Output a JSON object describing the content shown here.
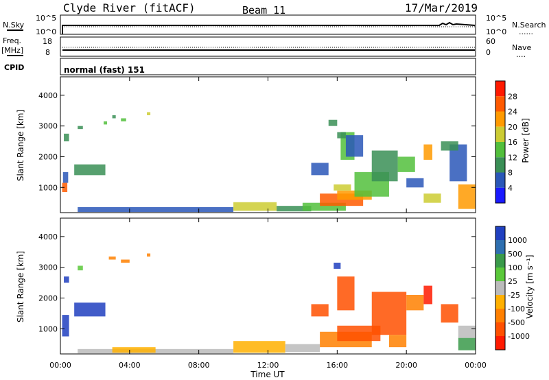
{
  "header": {
    "station": "Clyde River (fitACF)",
    "beam": "Beam 11",
    "date": "17/Mar/2019"
  },
  "sky_panel": {
    "left_label": "N.Sky",
    "left_ticks": [
      "10^5",
      "10^0"
    ],
    "right_ticks": [
      "10^5",
      "10^0"
    ],
    "right_label": "N.Search",
    "right_legend": "......"
  },
  "freq_panel": {
    "left_label_1": "Freq.",
    "left_label_2": "[MHz]",
    "left_ticks": [
      "18",
      "8"
    ],
    "right_ticks": [
      "60",
      "0"
    ],
    "right_label": "Nave",
    "right_legend": "...."
  },
  "cpid": {
    "label": "CPID",
    "value": "normal (fast) 151"
  },
  "x_axis": {
    "ticks": [
      "00:00",
      "04:00",
      "08:00",
      "12:00",
      "16:00",
      "20:00",
      "00:00"
    ],
    "label": "Time UT"
  },
  "chart_data": [
    {
      "type": "heatmap",
      "name": "power",
      "x_unit": "hours UT",
      "xlim": [
        0,
        24
      ],
      "y_label": "Slant Range [km]",
      "ylim": [
        180,
        4600
      ],
      "y_ticks": [
        "1000",
        "2000",
        "3000",
        "4000"
      ],
      "colorbar_label": "Power [dB]",
      "colorbar_ticks": [
        "4",
        "8",
        "12",
        "16",
        "20",
        "24",
        "28"
      ],
      "colorbar_colors": [
        "#1a1aff",
        "#2a57b8",
        "#3a8f56",
        "#52bf3c",
        "#cccc33",
        "#ff9a00",
        "#ff5a00",
        "#ff1a00"
      ],
      "cells": [
        {
          "t": [
            0.1,
            0.4
          ],
          "r": [
            850,
            1150
          ],
          "c": 6
        },
        {
          "t": [
            0.15,
            0.45
          ],
          "r": [
            1150,
            1500
          ],
          "c": 1
        },
        {
          "t": [
            0.2,
            0.5
          ],
          "r": [
            2500,
            2750
          ],
          "c": 2
        },
        {
          "t": [
            0.8,
            2.6
          ],
          "r": [
            1400,
            1750
          ],
          "c": 2
        },
        {
          "t": [
            1.0,
            1.3
          ],
          "r": [
            2900,
            3000
          ],
          "c": 2
        },
        {
          "t": [
            2.5,
            2.7
          ],
          "r": [
            3050,
            3150
          ],
          "c": 3
        },
        {
          "t": [
            3.0,
            3.2
          ],
          "r": [
            3250,
            3350
          ],
          "c": 2
        },
        {
          "t": [
            3.5,
            3.8
          ],
          "r": [
            3150,
            3250
          ],
          "c": 3
        },
        {
          "t": [
            5.0,
            5.2
          ],
          "r": [
            3350,
            3450
          ],
          "c": 4
        },
        {
          "t": [
            1.0,
            10.0
          ],
          "r": [
            200,
            360
          ],
          "c": 1
        },
        {
          "t": [
            10.0,
            12.5
          ],
          "r": [
            240,
            520
          ],
          "c": 4
        },
        {
          "t": [
            12.5,
            14.5
          ],
          "r": [
            220,
            400
          ],
          "c": 2
        },
        {
          "t": [
            14.0,
            16.5
          ],
          "r": [
            240,
            500
          ],
          "c": 3
        },
        {
          "t": [
            15.0,
            17.5
          ],
          "r": [
            400,
            800
          ],
          "c": 6
        },
        {
          "t": [
            16.0,
            18.0
          ],
          "r": [
            600,
            900
          ],
          "c": 5
        },
        {
          "t": [
            15.8,
            16.8
          ],
          "r": [
            900,
            1100
          ],
          "c": 4
        },
        {
          "t": [
            17.0,
            19.0
          ],
          "r": [
            700,
            1500
          ],
          "c": 3
        },
        {
          "t": [
            16.2,
            17.0
          ],
          "r": [
            1900,
            2800
          ],
          "c": 3
        },
        {
          "t": [
            15.5,
            16.0
          ],
          "r": [
            3000,
            3200
          ],
          "c": 2
        },
        {
          "t": [
            16.0,
            16.5
          ],
          "r": [
            2600,
            2800
          ],
          "c": 2
        },
        {
          "t": [
            16.5,
            17.5
          ],
          "r": [
            2000,
            2700
          ],
          "c": 1
        },
        {
          "t": [
            18.0,
            19.5
          ],
          "r": [
            1200,
            2200
          ],
          "c": 2
        },
        {
          "t": [
            19.5,
            20.5
          ],
          "r": [
            1500,
            2000
          ],
          "c": 3
        },
        {
          "t": [
            21.0,
            21.5
          ],
          "r": [
            1900,
            2400
          ],
          "c": 5
        },
        {
          "t": [
            21.0,
            22.0
          ],
          "r": [
            500,
            800
          ],
          "c": 4
        },
        {
          "t": [
            22.5,
            23.5
          ],
          "r": [
            1200,
            2400
          ],
          "c": 1
        },
        {
          "t": [
            22.0,
            23.0
          ],
          "r": [
            2200,
            2500
          ],
          "c": 2
        },
        {
          "t": [
            23.0,
            24.0
          ],
          "r": [
            300,
            1100
          ],
          "c": 5
        },
        {
          "t": [
            14.5,
            15.5
          ],
          "r": [
            1400,
            1800
          ],
          "c": 1
        },
        {
          "t": [
            20.0,
            21.0
          ],
          "r": [
            1000,
            1300
          ],
          "c": 1
        }
      ]
    },
    {
      "type": "heatmap",
      "name": "velocity",
      "x_unit": "hours UT",
      "xlim": [
        0,
        24
      ],
      "y_label": "Slant Range [km]",
      "ylim": [
        180,
        4600
      ],
      "y_ticks": [
        "1000",
        "2000",
        "3000",
        "4000"
      ],
      "colorbar_label": "Velocity [m s⁻¹]",
      "colorbar_ticks": [
        "1000",
        "500",
        "100",
        "25",
        "-25",
        "-100",
        "-500",
        "-1000"
      ],
      "colorbar_colors": [
        "#2040c0",
        "#2e6fb0",
        "#3a9a4a",
        "#5ac83a",
        "#bbbbbb",
        "#ffb000",
        "#ff8000",
        "#ff5000",
        "#ff1a00"
      ],
      "cells": [
        {
          "t": [
            0.1,
            0.5
          ],
          "r": [
            750,
            1450
          ],
          "c": 0
        },
        {
          "t": [
            0.2,
            0.5
          ],
          "r": [
            2500,
            2700
          ],
          "c": 0
        },
        {
          "t": [
            0.8,
            2.6
          ],
          "r": [
            1400,
            1850
          ],
          "c": 0
        },
        {
          "t": [
            1.0,
            1.3
          ],
          "r": [
            2900,
            3050
          ],
          "c": 3
        },
        {
          "t": [
            2.8,
            3.2
          ],
          "r": [
            3250,
            3350
          ],
          "c": 6
        },
        {
          "t": [
            3.5,
            4.0
          ],
          "r": [
            3150,
            3250
          ],
          "c": 6
        },
        {
          "t": [
            5.0,
            5.2
          ],
          "r": [
            3350,
            3450
          ],
          "c": 6
        },
        {
          "t": [
            1.0,
            10.0
          ],
          "r": [
            200,
            340
          ],
          "c": 4
        },
        {
          "t": [
            3.0,
            5.5
          ],
          "r": [
            220,
            400
          ],
          "c": 5
        },
        {
          "t": [
            10.0,
            13.0
          ],
          "r": [
            220,
            600
          ],
          "c": 5
        },
        {
          "t": [
            13.0,
            15.0
          ],
          "r": [
            240,
            500
          ],
          "c": 4
        },
        {
          "t": [
            15.0,
            18.0
          ],
          "r": [
            400,
            900
          ],
          "c": 6
        },
        {
          "t": [
            16.0,
            18.5
          ],
          "r": [
            600,
            1100
          ],
          "c": 7
        },
        {
          "t": [
            16.0,
            17.0
          ],
          "r": [
            1600,
            2700
          ],
          "c": 7
        },
        {
          "t": [
            15.8,
            16.2
          ],
          "r": [
            2950,
            3150
          ],
          "c": 0
        },
        {
          "t": [
            18.0,
            20.0
          ],
          "r": [
            800,
            2200
          ],
          "c": 7
        },
        {
          "t": [
            20.0,
            21.0
          ],
          "r": [
            1600,
            2100
          ],
          "c": 6
        },
        {
          "t": [
            21.0,
            21.5
          ],
          "r": [
            1800,
            2400
          ],
          "c": 8
        },
        {
          "t": [
            22.0,
            23.0
          ],
          "r": [
            1200,
            1800
          ],
          "c": 7
        },
        {
          "t": [
            23.0,
            24.0
          ],
          "r": [
            700,
            1100
          ],
          "c": 4
        },
        {
          "t": [
            23.0,
            24.0
          ],
          "r": [
            300,
            700
          ],
          "c": 2
        },
        {
          "t": [
            14.5,
            15.5
          ],
          "r": [
            1400,
            1800
          ],
          "c": 7
        },
        {
          "t": [
            19.0,
            20.0
          ],
          "r": [
            400,
            800
          ],
          "c": 6
        }
      ]
    }
  ]
}
